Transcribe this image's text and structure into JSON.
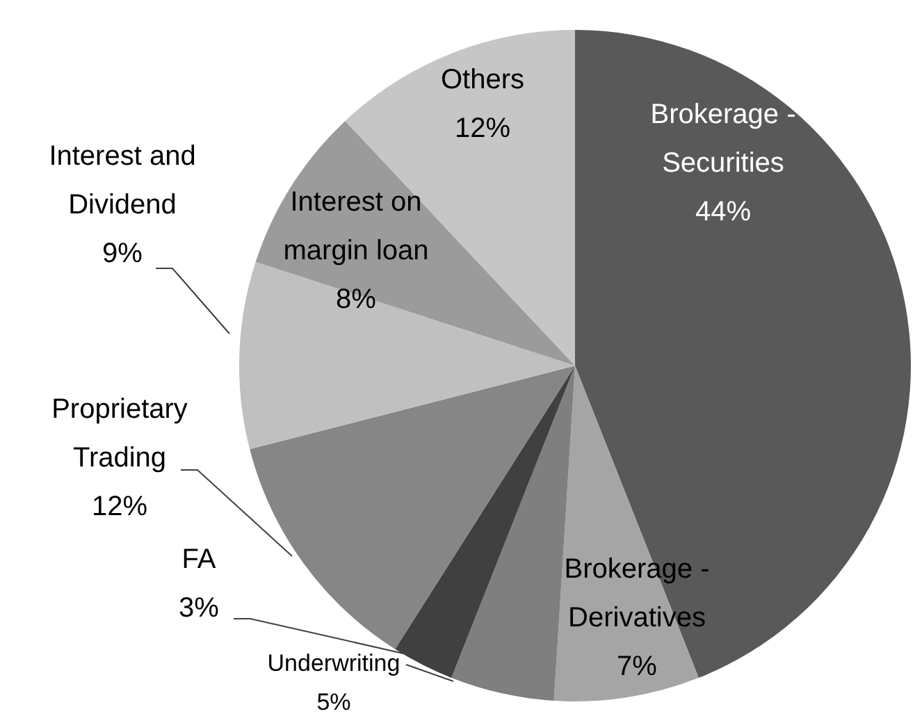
{
  "chart_data": {
    "type": "pie",
    "categories": [
      "Brokerage - Securities",
      "Brokerage - Derivatives",
      "Underwriting",
      "FA",
      "Proprietary Trading",
      "Interest and Dividend",
      "Interest on margin loan",
      "Others"
    ],
    "values": [
      44,
      7,
      5,
      3,
      12,
      9,
      8,
      12
    ],
    "value_labels": [
      "44%",
      "7%",
      "5%",
      "3%",
      "12%",
      "9%",
      "8%",
      "12%"
    ],
    "colors": [
      "#595959",
      "#a5a5a5",
      "#7f7f7f",
      "#404040",
      "#868686",
      "#c0c0c0",
      "#9b9b9b",
      "#c6c6c6"
    ],
    "legend": false
  }
}
